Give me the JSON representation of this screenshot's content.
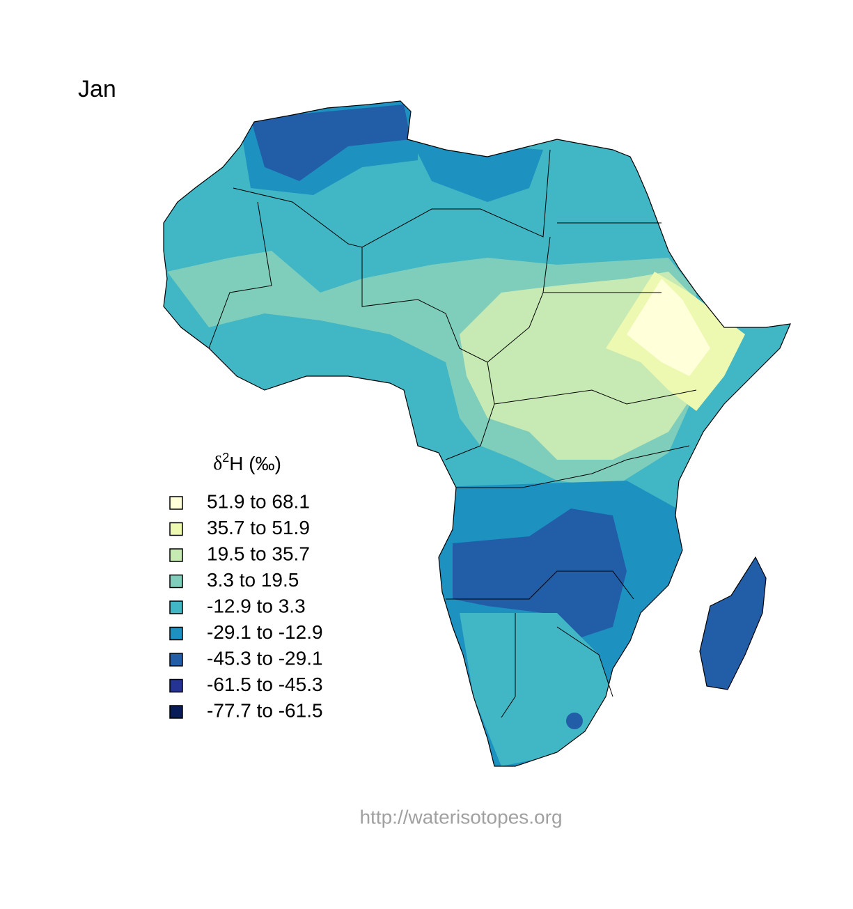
{
  "header": {
    "title": "Jan"
  },
  "legend": {
    "title_symbol": "δ",
    "title_superscript": "2",
    "title_rest": "H (‰)",
    "items": [
      {
        "label": "51.9 to 68.1",
        "color": "#ffffd9"
      },
      {
        "label": "35.7 to 51.9",
        "color": "#edf8b1"
      },
      {
        "label": "19.5 to 35.7",
        "color": "#c7e9b4"
      },
      {
        "label": "3.3 to 19.5",
        "color": "#7fcdbb"
      },
      {
        "label": "-12.9 to 3.3",
        "color": "#41b6c4"
      },
      {
        "label": "-29.1 to -12.9",
        "color": "#1d91c0"
      },
      {
        "label": "-45.3 to -29.1",
        "color": "#225ea8"
      },
      {
        "label": "-61.5 to -45.3",
        "color": "#253494"
      },
      {
        "label": "-77.7 to -61.5",
        "color": "#081d58"
      }
    ]
  },
  "footer": {
    "url": "http://waterisotopes.org"
  }
}
